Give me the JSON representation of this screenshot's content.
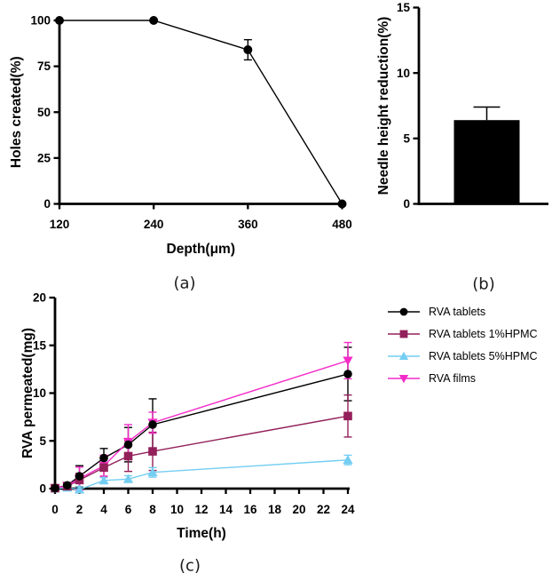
{
  "panel_labels": {
    "a": "(a)",
    "b": "(b)",
    "c": "(c)"
  },
  "colors": {
    "axis": "#000000",
    "rva_tablets": "#000000",
    "rva_tablets_1hpmc": "#93205A",
    "rva_tablets_5hpmc": "#74CEF2",
    "rva_films": "#F42BC8"
  },
  "chart_data": [
    {
      "id": "a",
      "type": "line",
      "title": "",
      "xlabel": "Depth(μm)",
      "ylabel": "Holes created(%)",
      "xticks": [
        120,
        240,
        360,
        480
      ],
      "yticks": [
        0,
        25,
        50,
        75,
        100
      ],
      "xlim": [
        120,
        480
      ],
      "ylim": [
        0,
        100
      ],
      "grid": false,
      "legend_position": "none",
      "series": [
        {
          "name": "Holes created",
          "color": "#000000",
          "marker": "circle",
          "x": [
            120,
            240,
            360,
            480
          ],
          "y": [
            100,
            100,
            84,
            0
          ],
          "err": [
            0,
            0,
            5.5,
            0
          ]
        }
      ]
    },
    {
      "id": "b",
      "type": "bar",
      "title": "",
      "xlabel": "",
      "ylabel": "Needle height reduction(%)",
      "categories": [
        ""
      ],
      "values": [
        6.4
      ],
      "errors": [
        1.0
      ],
      "yticks": [
        0,
        5,
        10,
        15
      ],
      "ylim": [
        0,
        15
      ],
      "grid": false,
      "bar_color": "#000000"
    },
    {
      "id": "c",
      "type": "line",
      "title": "",
      "xlabel": "Time(h)",
      "ylabel": "RVA permeated(mg)",
      "xticks": [
        0,
        2,
        4,
        6,
        8,
        10,
        12,
        14,
        16,
        18,
        20,
        22,
        24
      ],
      "yticks": [
        0,
        5,
        10,
        15,
        20
      ],
      "xlim": [
        0,
        24
      ],
      "ylim": [
        0,
        20
      ],
      "grid": false,
      "legend_position": "right",
      "series": [
        {
          "name": "RVA tablets",
          "color": "#000000",
          "marker": "circle",
          "x": [
            0,
            1,
            2,
            4,
            6,
            8,
            24
          ],
          "y": [
            0.05,
            0.35,
            1.3,
            3.2,
            4.6,
            6.7,
            12.0
          ],
          "err": [
            0.15,
            0.25,
            1.1,
            1.0,
            1.8,
            2.7,
            2.8
          ]
        },
        {
          "name": "RVA tablets 1%HPMC",
          "color": "#93205A",
          "marker": "square",
          "x": [
            0,
            1,
            2,
            4,
            6,
            8,
            24
          ],
          "y": [
            0.05,
            0.25,
            0.9,
            2.2,
            3.4,
            3.9,
            7.6
          ],
          "err": [
            0.15,
            0.25,
            0.7,
            0.9,
            1.6,
            2.0,
            2.2
          ]
        },
        {
          "name": "RVA tablets 5%HPMC",
          "color": "#74CEF2",
          "marker": "triangle-up",
          "x": [
            0,
            1,
            2,
            4,
            6,
            8,
            24
          ],
          "y": [
            0.0,
            0.1,
            -0.1,
            0.85,
            1.0,
            1.7,
            3.0
          ],
          "err": [
            0.1,
            0.15,
            0.3,
            0.3,
            0.35,
            0.5,
            0.5
          ]
        },
        {
          "name": "RVA films",
          "color": "#F42BC8",
          "marker": "triangle-down",
          "x": [
            0,
            1,
            2,
            4,
            6,
            8,
            24
          ],
          "y": [
            0.05,
            0.3,
            1.05,
            2.4,
            4.9,
            6.9,
            13.4
          ],
          "err": [
            0.15,
            0.25,
            1.2,
            1.1,
            1.8,
            1.1,
            1.9
          ]
        }
      ]
    }
  ]
}
